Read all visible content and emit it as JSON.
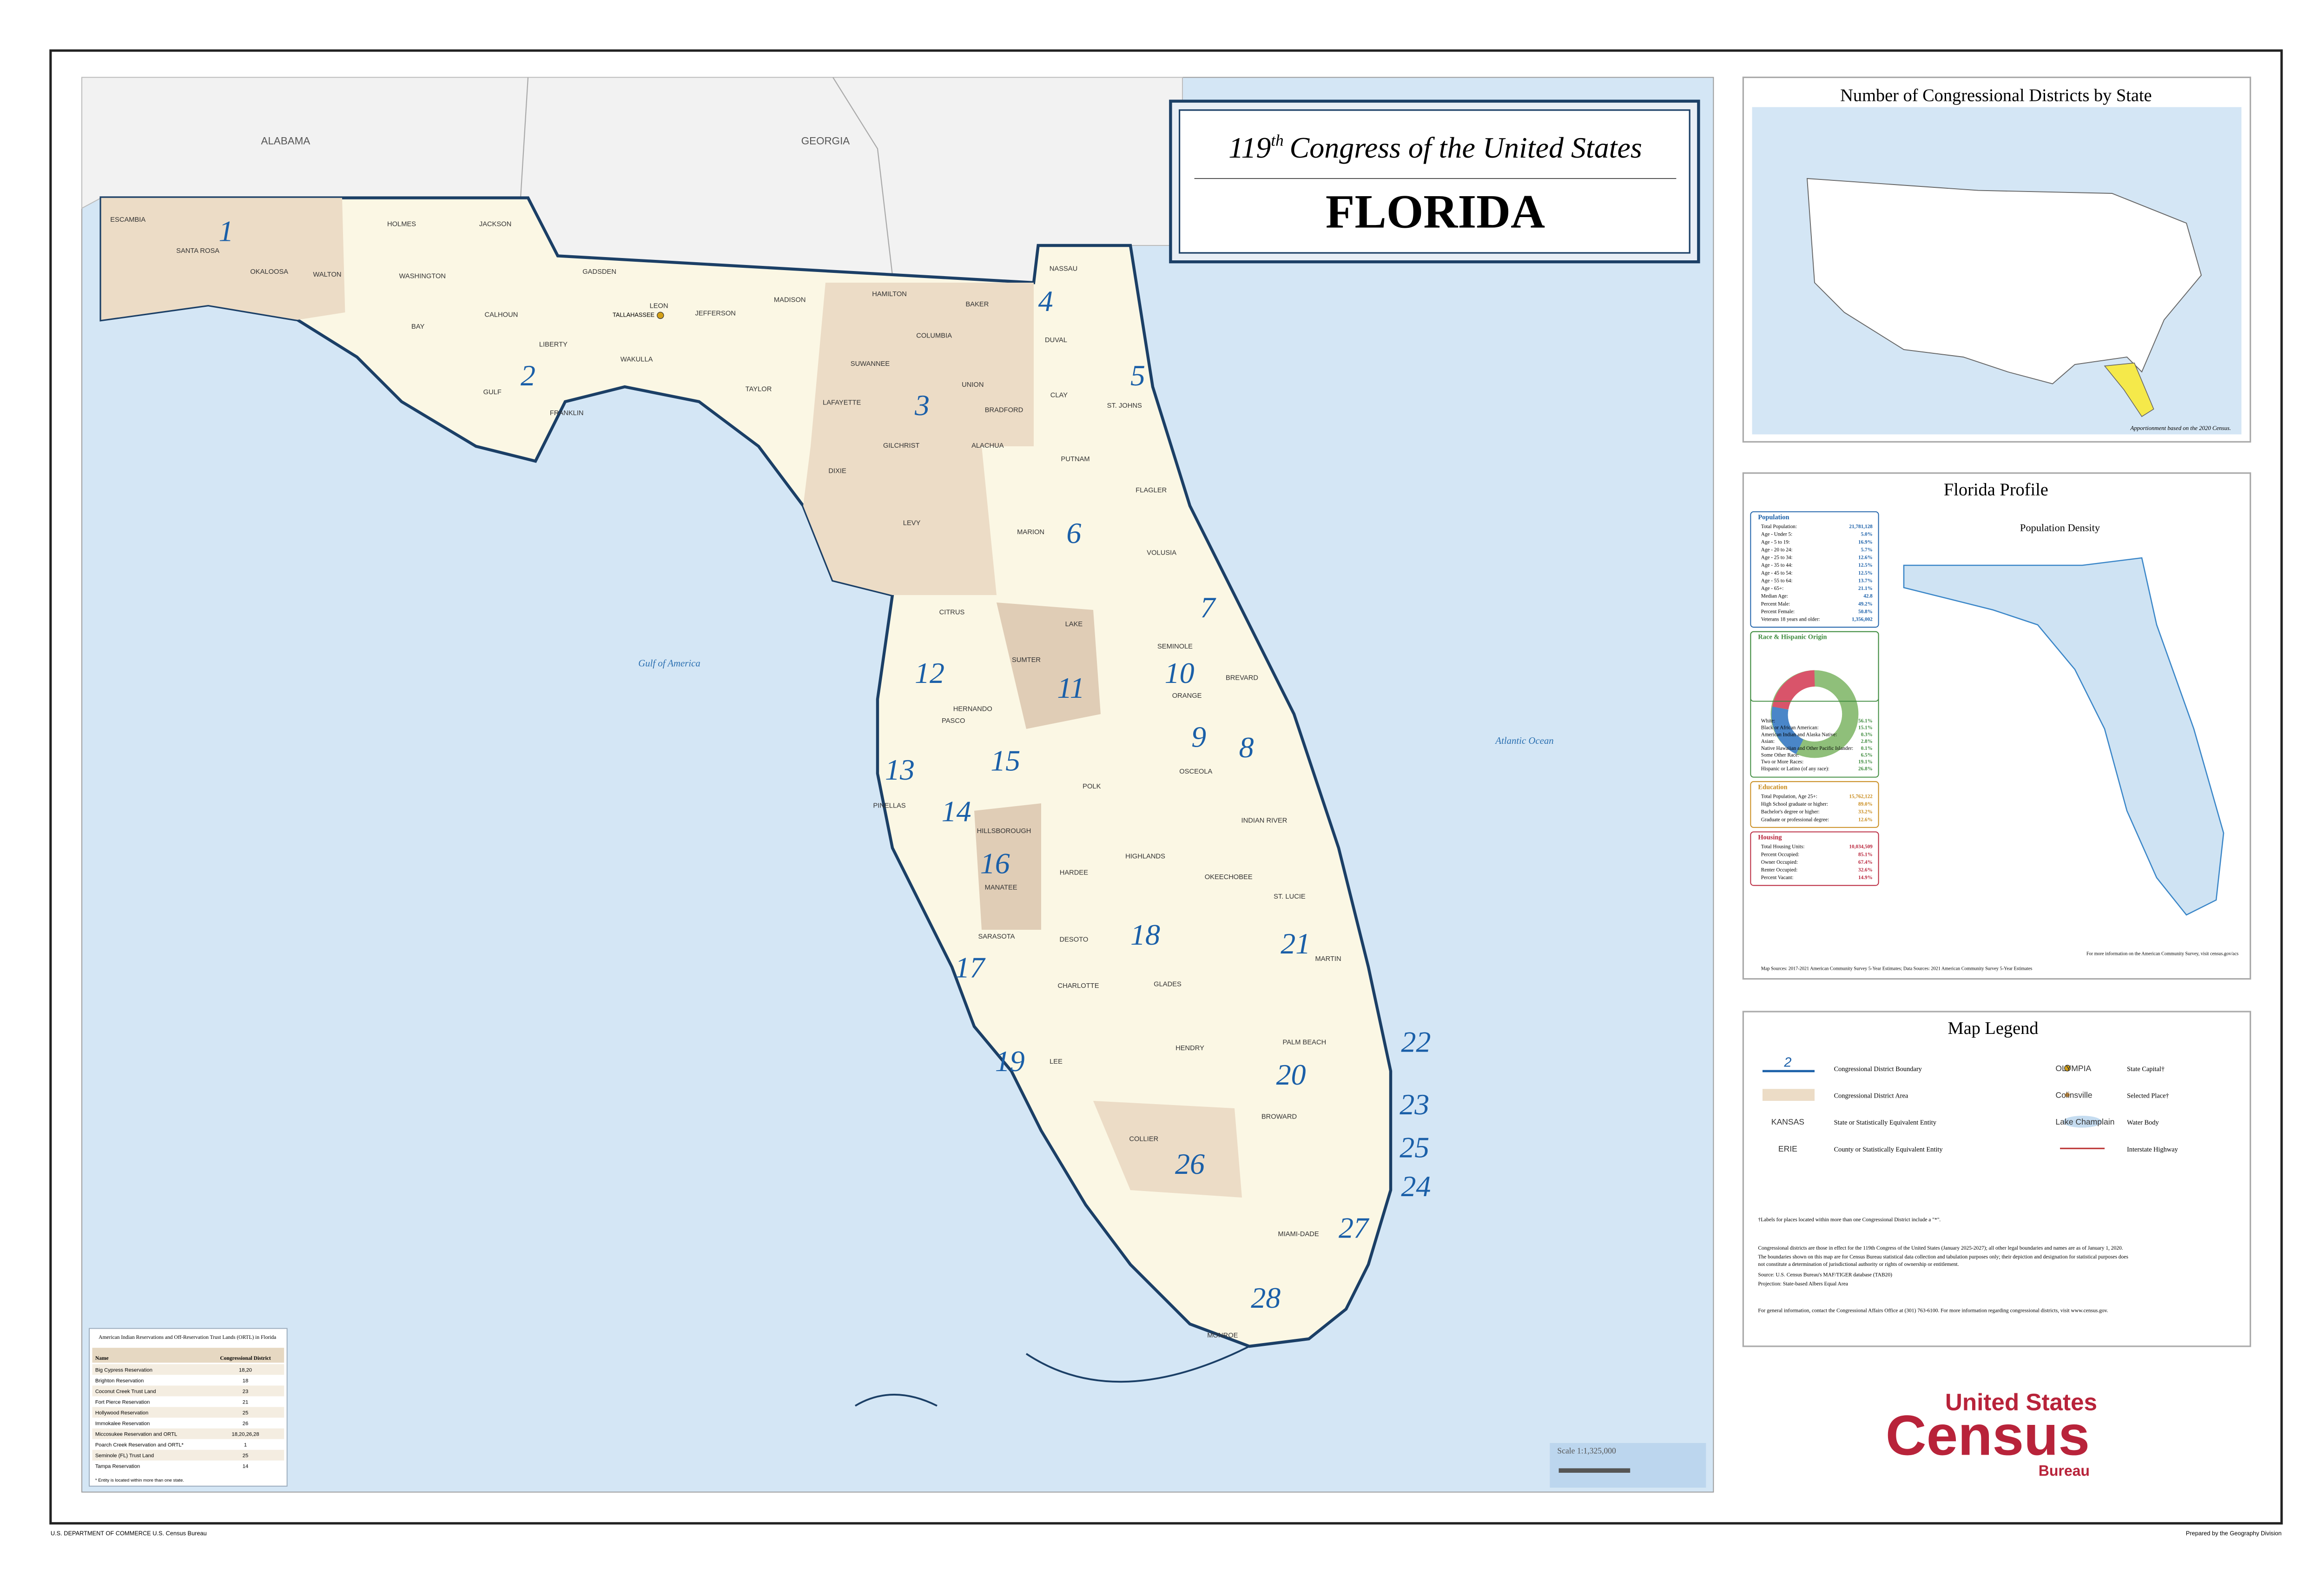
{
  "title": {
    "number": "119",
    "suffix": "th",
    "line": "Congress of the United States",
    "state": "FLORIDA"
  },
  "map": {
    "states": [
      "ALABAMA",
      "GEORGIA"
    ],
    "water": [
      "Gulf of America",
      "Atlantic Ocean"
    ],
    "capital": "TALLAHASSEE",
    "districts": [
      "1",
      "2",
      "3",
      "4",
      "5",
      "6",
      "7",
      "8",
      "9",
      "10",
      "11",
      "12",
      "13",
      "14",
      "15",
      "16",
      "17",
      "18",
      "19",
      "20",
      "21",
      "22",
      "23",
      "24",
      "25",
      "26",
      "27",
      "28"
    ],
    "counties": [
      "ESCAMBIA",
      "SANTA ROSA",
      "OKALOOSA",
      "WALTON",
      "HOLMES",
      "JACKSON",
      "WASHINGTON",
      "BAY",
      "CALHOUN",
      "GADSDEN",
      "LIBERTY",
      "GULF",
      "FRANKLIN",
      "LEON",
      "WAKULLA",
      "JEFFERSON",
      "MADISON",
      "TAYLOR",
      "HAMILTON",
      "SUWANNEE",
      "LAFAYETTE",
      "DIXIE",
      "NASSAU",
      "BAKER",
      "COLUMBIA",
      "DUVAL",
      "UNION",
      "BRADFORD",
      "CLAY",
      "ST. JOHNS",
      "GILCHRIST",
      "ALACHUA",
      "LEVY",
      "PUTNAM",
      "FLAGLER",
      "MARION",
      "VOLUSIA",
      "CITRUS",
      "LAKE",
      "SUMTER",
      "SEMINOLE",
      "BREVARD",
      "ORANGE",
      "HERNANDO",
      "PASCO",
      "OSCEOLA",
      "PINELLAS",
      "HILLSBOROUGH",
      "POLK",
      "INDIAN RIVER",
      "MANATEE",
      "HARDEE",
      "HIGHLANDS",
      "OKEECHOBEE",
      "ST. LUCIE",
      "SARASOTA",
      "DESOTO",
      "CHARLOTTE",
      "GLADES",
      "MARTIN",
      "LEE",
      "HENDRY",
      "PALM BEACH",
      "BROWARD",
      "COLLIER",
      "MIAMI-DADE",
      "MONROE"
    ],
    "scale": "Scale  1:1,325,000"
  },
  "reservations": {
    "title": "American Indian Reservations and Off-Reservation Trust Lands (ORTL) in Florida",
    "columns": [
      "Name",
      "Congressional District"
    ],
    "rows": [
      [
        "Big Cypress Reservation",
        "18,20"
      ],
      [
        "Brighton Reservation",
        "18"
      ],
      [
        "Coconut Creek Trust Land",
        "23"
      ],
      [
        "Fort Pierce Reservation",
        "21"
      ],
      [
        "Hollywood Reservation",
        "25"
      ],
      [
        "Immokalee Reservation",
        "26"
      ],
      [
        "Miccosukee Reservation and ORTL",
        "18,20,26,28"
      ],
      [
        "Poarch Creek Reservation and ORTL*",
        "1"
      ],
      [
        "Seminole (FL) Trust Land",
        "25"
      ],
      [
        "Tampa Reservation",
        "14"
      ]
    ],
    "note": "* Entity is located within more than one state."
  },
  "districts_panel": {
    "title": "Number of Congressional Districts by State",
    "note": "Apportionment based on the 2020 Census."
  },
  "profile": {
    "title": "Florida Profile",
    "density_title": "Population Density",
    "population": {
      "heading": "Population",
      "rows": [
        [
          "Total Population:",
          "21,781,128"
        ],
        [
          "Age - Under 5:",
          "5.0%"
        ],
        [
          "Age - 5 to 19:",
          "16.9%"
        ],
        [
          "Age - 20 to 24:",
          "5.7%"
        ],
        [
          "Age - 25 to 34:",
          "12.6%"
        ],
        [
          "Age - 35 to 44:",
          "12.5%"
        ],
        [
          "Age - 45 to 54:",
          "12.5%"
        ],
        [
          "Age - 55 to 64:",
          "13.7%"
        ],
        [
          "Age - 65+:",
          "21.1%"
        ],
        [
          "Median Age:",
          "42.8"
        ],
        [
          "Percent Male:",
          "49.2%"
        ],
        [
          "Percent Female:",
          "50.8%"
        ],
        [
          "Veterans 18 years and older:",
          "1,356,002"
        ]
      ]
    },
    "race": {
      "heading": "Race & Hispanic Origin",
      "rows": [
        [
          "White:",
          "56.1%"
        ],
        [
          "Black or African American:",
          "15.1%"
        ],
        [
          "American Indian and Alaska Native:",
          "0.3%"
        ],
        [
          "Asian:",
          "2.8%"
        ],
        [
          "Native Hawaiian and Other Pacific Islander:",
          "0.1%"
        ],
        [
          "Some Other Race:",
          "6.5%"
        ],
        [
          "Two or More Races:",
          "19.1%"
        ],
        [
          "Hispanic or Latino (of any race):",
          "26.8%"
        ]
      ]
    },
    "education": {
      "heading": "Education",
      "rows": [
        [
          "Total Population, Age 25+:",
          "15,762,122"
        ],
        [
          "High School graduate or higher:",
          "89.0%"
        ],
        [
          "Bachelor's degree or higher:",
          "33.2%"
        ],
        [
          "Graduate or professional degree:",
          "12.6%"
        ]
      ]
    },
    "housing": {
      "heading": "Housing",
      "rows": [
        [
          "Total Housing Units:",
          "10,034,509"
        ],
        [
          "Percent Occupied:",
          "85.1%"
        ],
        [
          "Owner Occupied:",
          "67.4%"
        ],
        [
          "Renter Occupied:",
          "32.6%"
        ],
        [
          "Percent Vacant:",
          "14.9%"
        ]
      ]
    },
    "source": "Map Sources: 2017-2021 American Community Survey 5-Year Estimates; Data Sources: 2021 American Community Survey 5-Year Estimates",
    "more": "For more information on the American Community Survey, visit census.gov/acs"
  },
  "legend": {
    "title": "Map Legend",
    "items": [
      [
        "2",
        "Congressional District Boundary"
      ],
      [
        "",
        "Congressional District Area"
      ],
      [
        "KANSAS",
        "State or Statistically Equivalent Entity"
      ],
      [
        "ERIE",
        "County or Statistically Equivalent Entity"
      ],
      [
        "OLYMPIA",
        "State Capital†"
      ],
      [
        "Colinsville",
        "Selected Place†"
      ],
      [
        "Lake Champlain",
        "Water Body"
      ],
      [
        "",
        "Interstate Highway"
      ]
    ],
    "notes": [
      "†Labels for places located within more than one Congressional District include a \"*\".",
      "Congressional districts are those in effect for the 119th Congress of the United States (January 2025-2027); all other legal boundaries and names are as of January 1, 2020.",
      "The boundaries shown on this map are for Census Bureau statistical data collection and tabulation purposes only; their depiction and designation for statistical purposes does",
      "not constitute a determination of jurisdictional authority or rights of ownership or entitlement.",
      "Source: U.S. Census Bureau's MAF/TIGER database (TAB20)",
      "Projection: State-based Albers Equal Area",
      "For general information, contact the Congressional Affairs Office at (301) 763-6100. For more information regarding congressional districts, visit www.census.gov."
    ]
  },
  "logo": {
    "line1": "United States",
    "line2": "Census",
    "line3": "Bureau"
  },
  "footer": {
    "left": "U.S. DEPARTMENT OF COMMERCE  U.S. Census Bureau",
    "right": "Prepared by the Geography Division"
  }
}
